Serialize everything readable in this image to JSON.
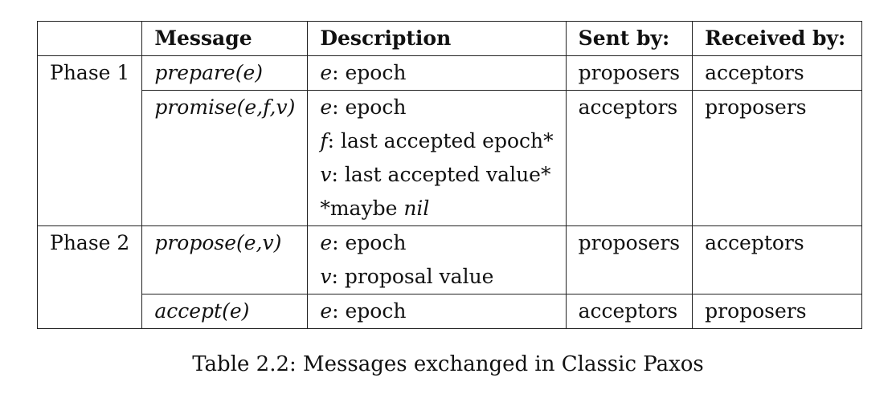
{
  "table": {
    "headers": [
      "",
      "Message",
      "Description",
      "Sent by:",
      "Received by:"
    ],
    "rows": [
      {
        "phase": "Phase 1",
        "message": "prepare(e)",
        "description": [
          {
            "var": "e",
            "text": ": epoch"
          }
        ],
        "sent_by": "proposers",
        "received_by": "acceptors"
      },
      {
        "phase": "",
        "message": "promise(e,f,v)",
        "description": [
          {
            "var": "e",
            "text": ": epoch"
          },
          {
            "var": "f",
            "text": ": last accepted epoch*"
          },
          {
            "var": "v",
            "text": ": last accepted value*"
          },
          {
            "prefix": "*maybe ",
            "italic": "nil"
          }
        ],
        "sent_by": "acceptors",
        "received_by": "proposers"
      },
      {
        "phase": "Phase 2",
        "message": "propose(e,v)",
        "description": [
          {
            "var": "e",
            "text": ": epoch"
          },
          {
            "var": "v",
            "text": ": proposal value"
          }
        ],
        "sent_by": "proposers",
        "received_by": "acceptors"
      },
      {
        "phase": "",
        "message": "accept(e)",
        "description": [
          {
            "var": "e",
            "text": ": epoch"
          }
        ],
        "sent_by": "acceptors",
        "received_by": "proposers"
      }
    ]
  },
  "caption": "Table 2.2: Messages exchanged in Classic Paxos"
}
